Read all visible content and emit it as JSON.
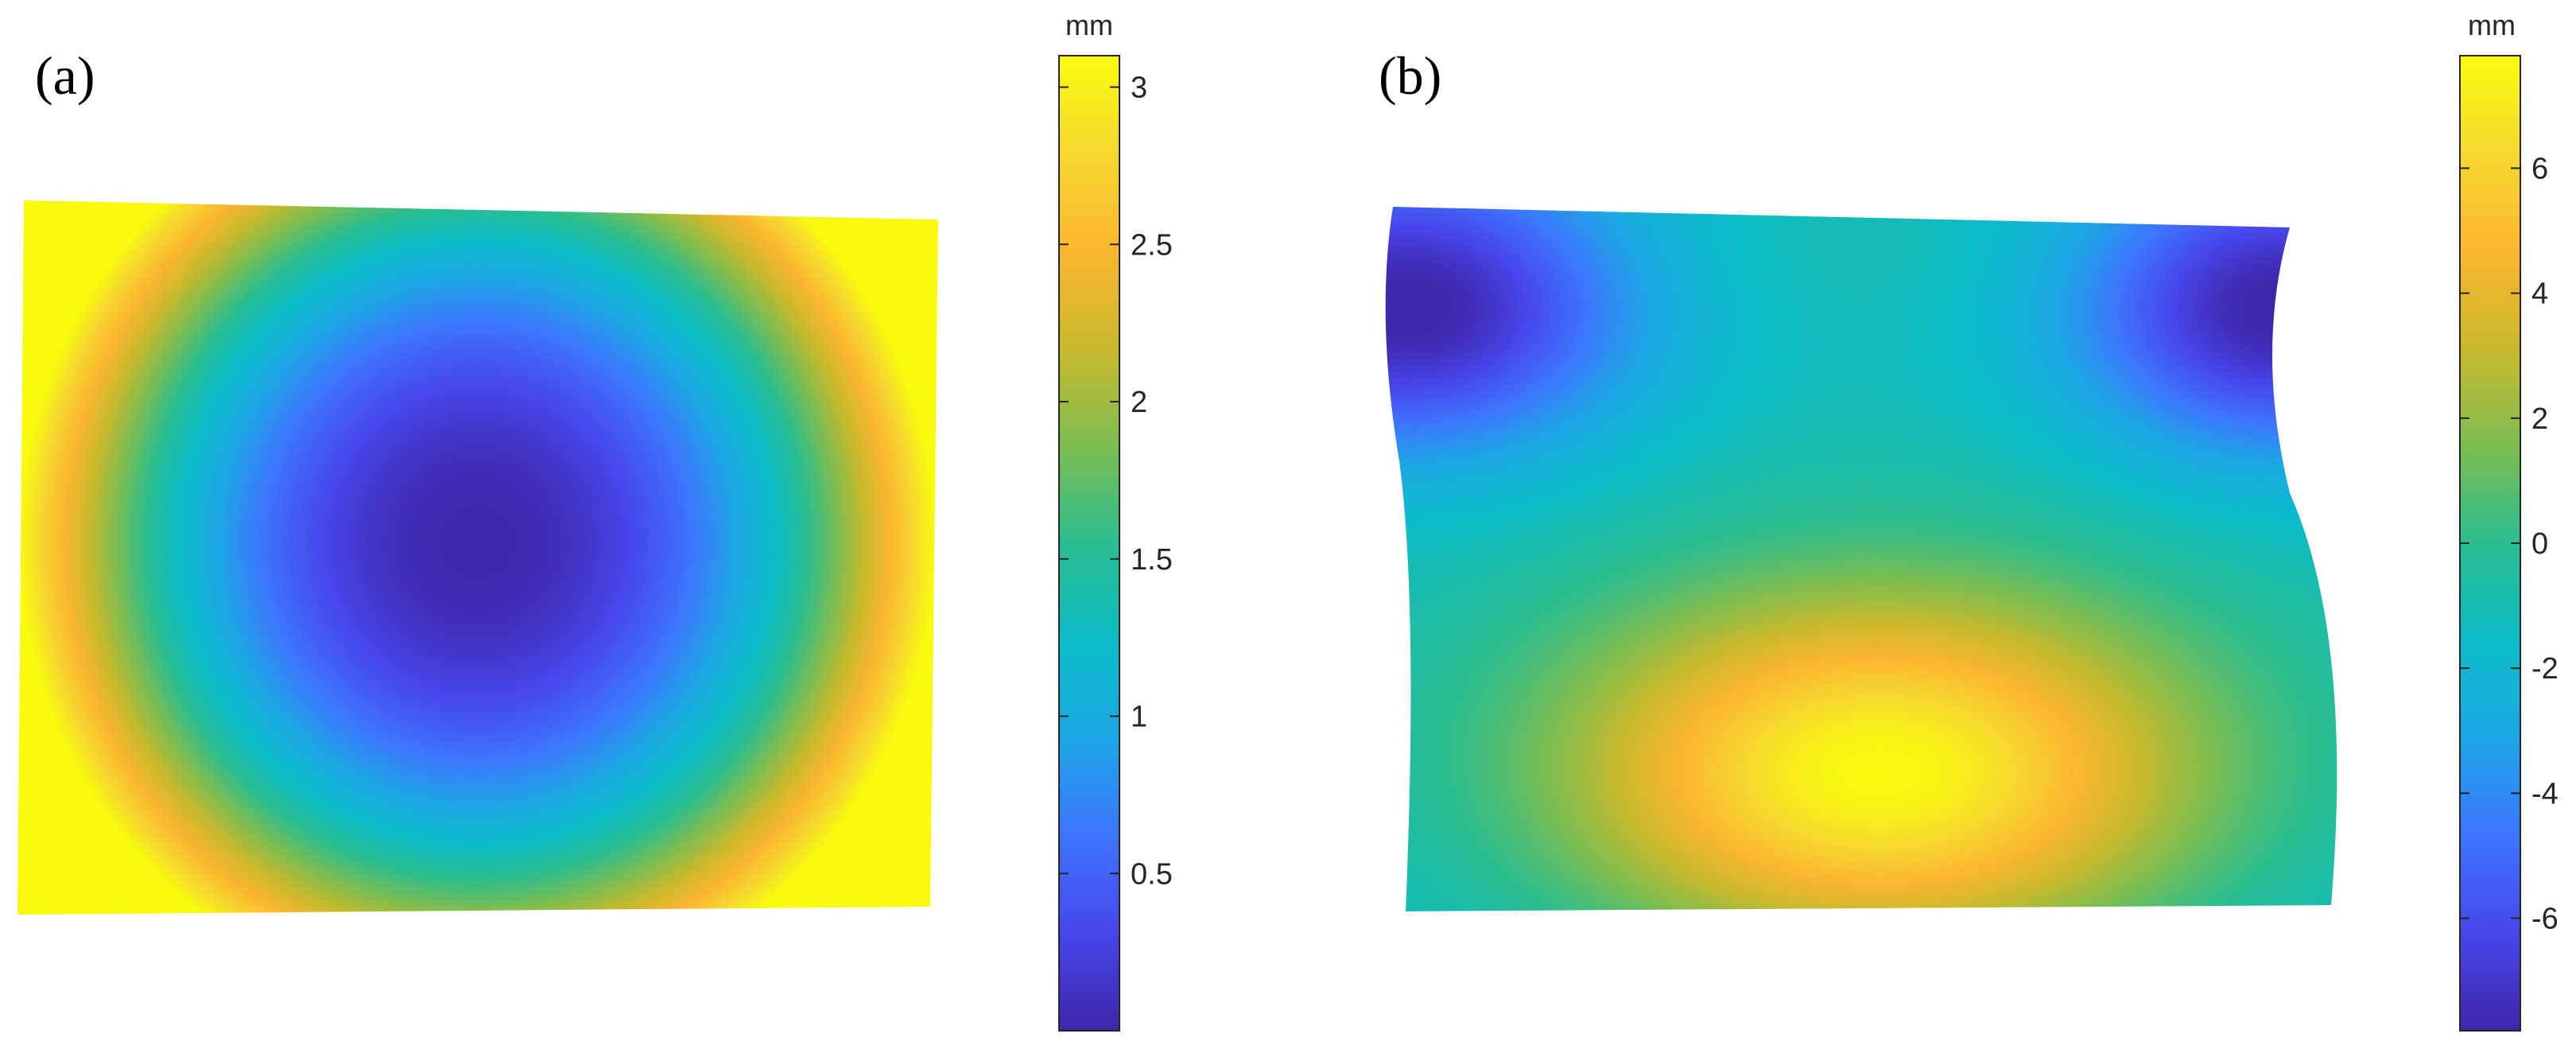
{
  "chart_data": [
    {
      "type": "heatmap",
      "panel_label": "(a)",
      "colorbar": {
        "unit": "mm",
        "limits": [
          0.0,
          3.1
        ],
        "ticks": [
          0.5,
          1,
          1.5,
          2,
          2.5,
          3
        ],
        "tick_labels": [
          "0.5",
          "1",
          "1.5",
          "2",
          "2.5",
          "3"
        ]
      },
      "field": {
        "description_shape": "radial bowl",
        "min_value": 0.0,
        "max_value": 3.1,
        "minimum_location": "center",
        "maximum_location": "corners"
      },
      "colormap": "parula"
    },
    {
      "type": "heatmap",
      "panel_label": "(b)",
      "colorbar": {
        "unit": "mm",
        "limits": [
          -7.8,
          7.8
        ],
        "ticks": [
          -6,
          -4,
          -2,
          0,
          2,
          4,
          6
        ],
        "tick_labels": [
          "-6",
          "-4",
          "-2",
          "0",
          "2",
          "4",
          "6"
        ]
      },
      "field": {
        "min_value": -7.8,
        "max_value": 7.8,
        "minimum_location": "upper-left and upper-right lobes",
        "maximum_location": "lower-center"
      },
      "colormap": "parula"
    }
  ],
  "colors": {
    "parula_stops": [
      "#3e26a8",
      "#4746eb",
      "#3e74fe",
      "#1da7e5",
      "#0bbcc7",
      "#2bbd8f",
      "#7dbd51",
      "#c9b92c",
      "#fbb630",
      "#f6d82f",
      "#f9fb0e"
    ]
  }
}
